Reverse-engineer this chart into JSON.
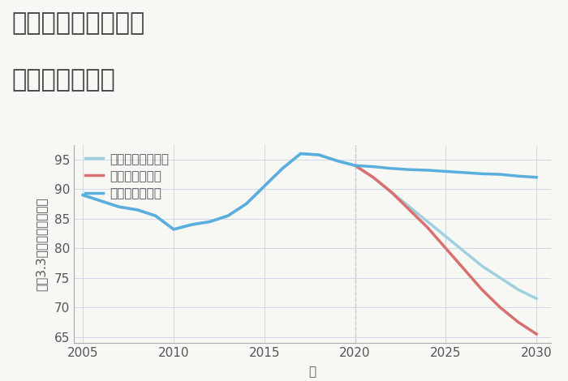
{
  "title_line1": "兵庫県西宮市本町の",
  "title_line2": "土地の価格推移",
  "xlabel": "年",
  "ylabel": "坪（3.3㎡）単価（万円）",
  "background_color": "#f7f7f3",
  "plot_background_color": "#f7f7f3",
  "grid_color": "#d0d8e8",
  "ylim": [
    64,
    97.5
  ],
  "yticks": [
    65,
    70,
    75,
    80,
    85,
    90,
    95
  ],
  "xlim": [
    2004.5,
    2030.8
  ],
  "xticks": [
    2005,
    2010,
    2015,
    2020,
    2025,
    2030
  ],
  "good_scenario": {
    "label": "グッドシナリオ",
    "color": "#5aaedd",
    "x": [
      2005,
      2006,
      2007,
      2008,
      2009,
      2010,
      2011,
      2012,
      2013,
      2014,
      2015,
      2016,
      2017,
      2018,
      2019,
      2020,
      2021,
      2022,
      2023,
      2024,
      2025,
      2026,
      2027,
      2028,
      2029,
      2030
    ],
    "y": [
      89.0,
      88.0,
      87.0,
      86.5,
      85.5,
      83.2,
      84.0,
      84.5,
      85.5,
      87.5,
      90.5,
      93.5,
      96.0,
      95.8,
      94.8,
      94.0,
      93.8,
      93.5,
      93.3,
      93.2,
      93.0,
      92.8,
      92.6,
      92.5,
      92.2,
      92.0
    ],
    "linewidth": 2.5
  },
  "bad_scenario": {
    "label": "バッドシナリオ",
    "color": "#d97070",
    "x": [
      2020,
      2021,
      2022,
      2023,
      2024,
      2025,
      2026,
      2027,
      2028,
      2029,
      2030
    ],
    "y": [
      94.0,
      92.0,
      89.5,
      86.5,
      83.5,
      80.0,
      76.5,
      73.0,
      70.0,
      67.5,
      65.5
    ],
    "linewidth": 2.5
  },
  "normal_scenario": {
    "label": "ノーマルシナリオ",
    "color": "#a0d0e0",
    "x": [
      2005,
      2006,
      2007,
      2008,
      2009,
      2010,
      2011,
      2012,
      2013,
      2014,
      2015,
      2016,
      2017,
      2018,
      2019,
      2020,
      2021,
      2022,
      2023,
      2024,
      2025,
      2026,
      2027,
      2028,
      2029,
      2030
    ],
    "y": [
      89.0,
      88.0,
      87.0,
      86.5,
      85.5,
      83.2,
      84.0,
      84.5,
      85.5,
      87.5,
      90.5,
      93.5,
      96.0,
      95.8,
      94.8,
      94.0,
      92.0,
      89.5,
      87.0,
      84.5,
      82.0,
      79.5,
      77.0,
      75.0,
      73.0,
      71.5
    ],
    "linewidth": 2.5
  },
  "vline_x": 2020,
  "vline_color": "#c0ccdc",
  "title_fontsize": 22,
  "legend_fontsize": 11,
  "tick_fontsize": 11,
  "label_fontsize": 11,
  "title_color": "#444444",
  "tick_color": "#555555",
  "label_color": "#555555"
}
